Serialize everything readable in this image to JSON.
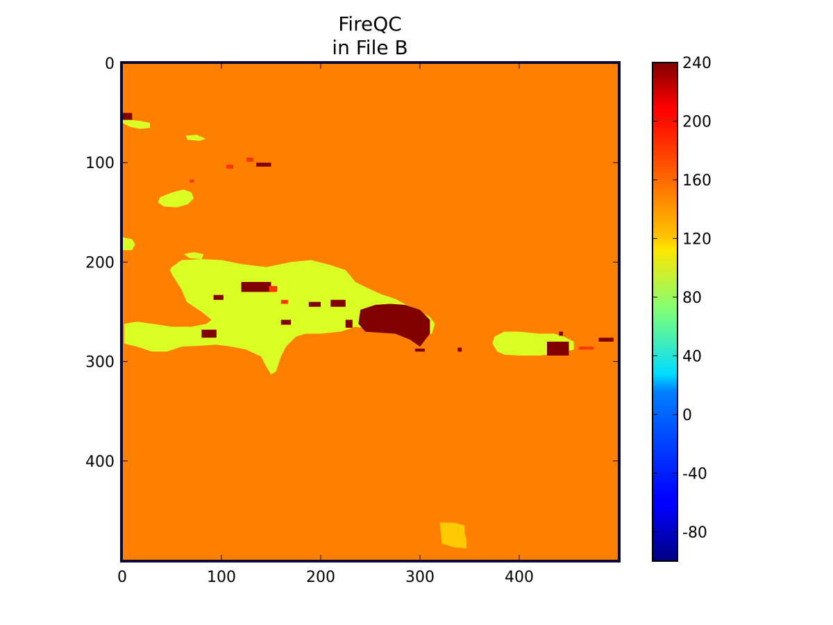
{
  "chart_data": {
    "type": "heatmap",
    "title_line1": "FireQC",
    "title_line2": "in File B",
    "xlabel": "",
    "ylabel": "",
    "x_range": [
      0,
      500
    ],
    "y_range": [
      0,
      500
    ],
    "y_inverted": true,
    "x_ticks": [
      0,
      100,
      200,
      300,
      400
    ],
    "y_ticks": [
      0,
      100,
      200,
      300,
      400
    ],
    "grid": false,
    "colormap": "jet",
    "colorbar": {
      "range": [
        -100,
        240
      ],
      "ticks": [
        -80,
        -40,
        0,
        40,
        80,
        120,
        160,
        200,
        240
      ]
    },
    "background_value": 155,
    "regions": [
      {
        "name": "hispaniola",
        "value": 100,
        "x": [
          50,
          60,
          80,
          100,
          120,
          145,
          170,
          190,
          210,
          225,
          235,
          245,
          260,
          275,
          290,
          300,
          310,
          315,
          312,
          300,
          290,
          275,
          255,
          235,
          220,
          200,
          185,
          175,
          165,
          160,
          155,
          150,
          145,
          140,
          125,
          110,
          95,
          80,
          60,
          45,
          30,
          15,
          2,
          2,
          15,
          30,
          50,
          70,
          85,
          90,
          80,
          65,
          60,
          55,
          50,
          48
        ],
        "y": [
          205,
          198,
          197,
          198,
          202,
          205,
          200,
          198,
          203,
          208,
          220,
          225,
          232,
          237,
          245,
          250,
          255,
          262,
          272,
          275,
          272,
          270,
          268,
          265,
          270,
          272,
          272,
          275,
          285,
          295,
          310,
          313,
          305,
          295,
          288,
          285,
          283,
          284,
          285,
          290,
          290,
          285,
          282,
          262,
          260,
          262,
          265,
          265,
          262,
          258,
          250,
          240,
          228,
          220,
          212,
          208
        ]
      },
      {
        "name": "puerto-rico",
        "value": 100,
        "x": [
          375,
          385,
          400,
          420,
          435,
          445,
          455,
          455,
          440,
          420,
          400,
          385,
          378,
          373
        ],
        "y": [
          275,
          270,
          270,
          272,
          272,
          275,
          280,
          288,
          292,
          294,
          294,
          293,
          290,
          282
        ]
      },
      {
        "name": "cuba-east",
        "value": 100,
        "x": [
          0,
          8,
          18,
          28,
          28,
          18,
          8,
          0
        ],
        "y": [
          55,
          57,
          58,
          60,
          65,
          66,
          64,
          60
        ]
      },
      {
        "name": "cuba-tip",
        "value": 100,
        "x": [
          0,
          10,
          13,
          10,
          0
        ],
        "y": [
          175,
          177,
          182,
          188,
          188
        ]
      },
      {
        "name": "jamaica",
        "value": 100,
        "x": [
          38,
          50,
          62,
          70,
          72,
          66,
          55,
          42,
          36
        ],
        "y": [
          135,
          130,
          127,
          130,
          136,
          142,
          145,
          144,
          140
        ]
      },
      {
        "name": "great-inagua",
        "value": 100,
        "x": [
          62,
          72,
          82,
          80,
          68
        ],
        "y": [
          192,
          190,
          192,
          197,
          196
        ]
      },
      {
        "name": "caicos",
        "value": 100,
        "x": [
          64,
          75,
          84,
          78,
          66
        ],
        "y": [
          73,
          72,
          76,
          78,
          77
        ]
      },
      {
        "name": "yellow-patch",
        "value": 130,
        "x": [
          320,
          335,
          345,
          345,
          347,
          347,
          335,
          322
        ],
        "y": [
          462,
          462,
          465,
          472,
          480,
          488,
          487,
          483
        ]
      },
      {
        "name": "east-fire-blob",
        "value": 240,
        "x": [
          240,
          255,
          270,
          285,
          300,
          310,
          310,
          300,
          290,
          275,
          260,
          245,
          238
        ],
        "y": [
          248,
          243,
          242,
          243,
          248,
          258,
          272,
          285,
          278,
          272,
          271,
          270,
          262
        ]
      },
      {
        "name": "fire-1",
        "value": 240,
        "x": [
          120,
          150,
          150,
          120
        ],
        "y": [
          220,
          220,
          230,
          230
        ]
      },
      {
        "name": "fire-2",
        "value": 240,
        "x": [
          210,
          225,
          225,
          210
        ],
        "y": [
          238,
          238,
          245,
          245
        ]
      },
      {
        "name": "fire-3",
        "value": 240,
        "x": [
          80,
          95,
          95,
          80
        ],
        "y": [
          268,
          268,
          276,
          276
        ]
      },
      {
        "name": "fire-4",
        "value": 240,
        "x": [
          428,
          450,
          450,
          428
        ],
        "y": [
          280,
          280,
          294,
          294
        ]
      },
      {
        "name": "fire-5",
        "value": 240,
        "x": [
          0,
          10,
          10,
          0
        ],
        "y": [
          50,
          50,
          57,
          57
        ]
      },
      {
        "name": "fire-6",
        "value": 240,
        "x": [
          135,
          150,
          150,
          135
        ],
        "y": [
          100,
          100,
          104,
          104
        ]
      },
      {
        "name": "fire-7",
        "value": 240,
        "x": [
          92,
          102,
          102,
          92
        ],
        "y": [
          233,
          233,
          238,
          238
        ]
      },
      {
        "name": "fire-8",
        "value": 240,
        "x": [
          160,
          170,
          170,
          160
        ],
        "y": [
          258,
          258,
          263,
          263
        ]
      },
      {
        "name": "fire-9",
        "value": 240,
        "x": [
          480,
          495,
          495,
          480
        ],
        "y": [
          276,
          276,
          280,
          280
        ]
      },
      {
        "name": "fire-10",
        "value": 240,
        "x": [
          295,
          305,
          305,
          295
        ],
        "y": [
          287,
          287,
          290,
          290
        ]
      },
      {
        "name": "fire-11",
        "value": 240,
        "x": [
          338,
          342,
          342,
          338
        ],
        "y": [
          286,
          286,
          290,
          290
        ]
      },
      {
        "name": "fire-12",
        "value": 240,
        "x": [
          440,
          444,
          444,
          440
        ],
        "y": [
          270,
          270,
          274,
          274
        ]
      },
      {
        "name": "fire-13",
        "value": 240,
        "x": [
          188,
          200,
          200,
          188
        ],
        "y": [
          240,
          240,
          245,
          245
        ]
      },
      {
        "name": "fire-14",
        "value": 240,
        "x": [
          225,
          232,
          232,
          225
        ],
        "y": [
          258,
          258,
          266,
          266
        ]
      },
      {
        "name": "warm-1",
        "value": 180,
        "x": [
          105,
          112,
          112,
          105
        ],
        "y": [
          102,
          102,
          106,
          106
        ]
      },
      {
        "name": "warm-2",
        "value": 180,
        "x": [
          68,
          72,
          72,
          68
        ],
        "y": [
          117,
          117,
          120,
          120
        ]
      },
      {
        "name": "warm-3",
        "value": 180,
        "x": [
          460,
          475,
          475,
          460
        ],
        "y": [
          285,
          285,
          288,
          288
        ]
      },
      {
        "name": "warm-4",
        "value": 180,
        "x": [
          148,
          156,
          156,
          148
        ],
        "y": [
          224,
          224,
          230,
          230
        ]
      },
      {
        "name": "warm-5",
        "value": 180,
        "x": [
          125,
          132,
          132,
          125
        ],
        "y": [
          95,
          95,
          99,
          99
        ]
      },
      {
        "name": "warm-6",
        "value": 180,
        "x": [
          160,
          167,
          167,
          160
        ],
        "y": [
          238,
          238,
          242,
          242
        ]
      }
    ]
  }
}
